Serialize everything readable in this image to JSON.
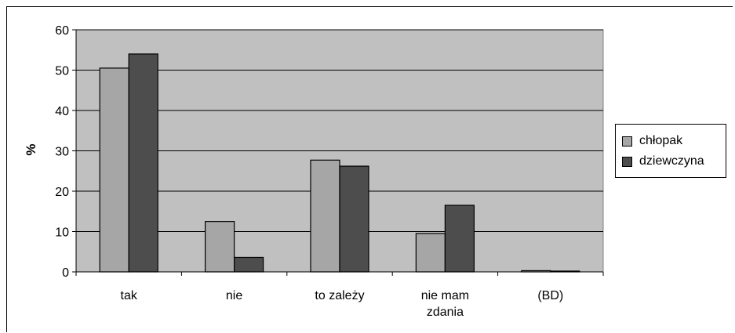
{
  "chart_data": {
    "type": "bar",
    "categories": [
      "tak",
      "nie",
      "to zależy",
      "nie mam zdania",
      "(BD)"
    ],
    "category_lines": [
      [
        "tak"
      ],
      [
        "nie"
      ],
      [
        "to zależy"
      ],
      [
        "nie mam",
        "zdania"
      ],
      [
        "(BD)"
      ]
    ],
    "series": [
      {
        "name": "chłopak",
        "values": [
          50.5,
          12.5,
          27.7,
          9.5,
          0.3
        ],
        "color": "#a6a6a6"
      },
      {
        "name": "dziewczyna",
        "values": [
          54.0,
          3.6,
          26.2,
          16.5,
          0.2
        ],
        "color": "#4d4d4d"
      }
    ],
    "title": "",
    "xlabel": "",
    "ylabel": "%",
    "ylim": [
      0,
      60
    ],
    "yticks": [
      0,
      10,
      20,
      30,
      40,
      50,
      60
    ],
    "grid": true,
    "plot_background": "#c0c0c0",
    "legend_position": "right"
  }
}
